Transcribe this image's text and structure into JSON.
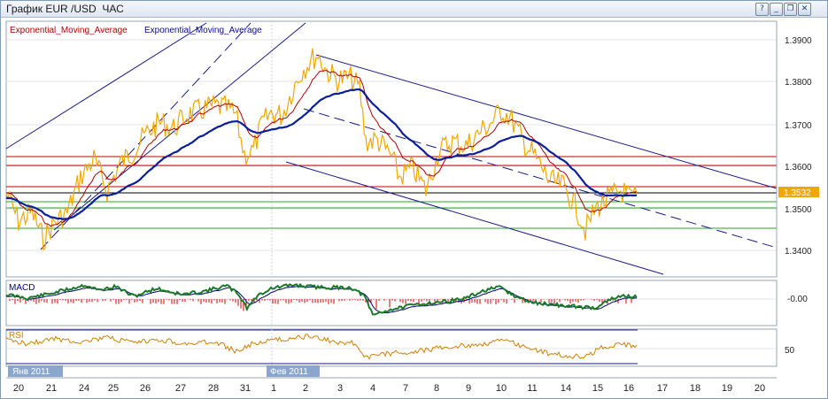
{
  "window": {
    "title": "График EUR /USD  ЧАС",
    "buttons": [
      {
        "icon": "help-icon",
        "glyph": "?"
      },
      {
        "icon": "minimize-icon",
        "glyph": "_"
      },
      {
        "icon": "restore-icon",
        "glyph": "❐"
      },
      {
        "icon": "close-icon",
        "glyph": "✕"
      }
    ]
  },
  "main_chart": {
    "legend": [
      "Exponential_Moving_Average",
      "Exponential_Moving_Average"
    ],
    "legend_colors": [
      "#b00000",
      "#0a0a8a"
    ],
    "price_labels": [
      "1.3900",
      "1.3800",
      "1.3700",
      "1.3600",
      "1.3500",
      "1.3400"
    ],
    "current_price": "1.3532",
    "colors": {
      "price": "#f0a800",
      "ema_fast": "#b00000",
      "ema_slow": "#0a1f9a",
      "channel": "#1a1a8a",
      "resistance": "#c00000",
      "support": "#22aa22",
      "current": "#f0a800"
    }
  },
  "macd_panel": {
    "label": "MACD",
    "value_label": "-0.00",
    "colors": {
      "line": "#1a7a2a",
      "signal": "#000080",
      "hist": "#d00000"
    }
  },
  "rsi_panel": {
    "label": "RSI",
    "value_label": "50",
    "colors": {
      "line": "#d08000"
    }
  },
  "time_axis": {
    "month_labels": [
      "Янв 2011",
      "Фев 2011"
    ],
    "day_labels": [
      "20",
      "21",
      "24",
      "25",
      "26",
      "27",
      "28",
      "31",
      "1",
      "2",
      "3",
      "4",
      "7",
      "8",
      "9",
      "10",
      "11",
      "14",
      "15",
      "16",
      "17",
      "18",
      "19",
      "20"
    ]
  }
}
